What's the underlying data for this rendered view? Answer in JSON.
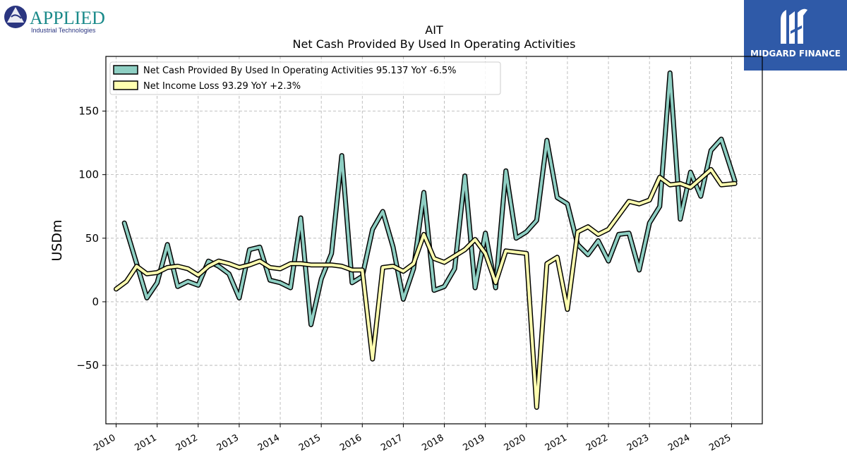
{
  "logos": {
    "left_name": "APPLIED",
    "left_tagline": "Industrial Technologies",
    "right_name": "MIDGARD FINANCE"
  },
  "colors": {
    "series1": "#8ecfc3",
    "series2": "#ffffb0",
    "outline": "#000000",
    "grid": "#b0b0b0",
    "brand_blue": "#2f5aa8",
    "applied_teal": "#1a8a8a",
    "applied_navy": "#2a3580"
  },
  "chart_data": {
    "type": "line",
    "title": "AIT",
    "subtitle": "Net Cash Provided By Used In Operating Activities",
    "xlabel": "",
    "ylabel": "USDm",
    "xlim": [
      2009.75,
      2025.75
    ],
    "ylim": [
      -96,
      193
    ],
    "grid": true,
    "legend_position": "top-left",
    "x_ticks": [
      2010,
      2011,
      2012,
      2013,
      2014,
      2015,
      2016,
      2017,
      2018,
      2019,
      2020,
      2021,
      2022,
      2023,
      2024,
      2025
    ],
    "x_tick_labels": [
      "2010",
      "2011",
      "2012",
      "2013",
      "2014",
      "2015",
      "2016",
      "2017",
      "2018",
      "2019",
      "2020",
      "2021",
      "2022",
      "2023",
      "2024",
      "2025"
    ],
    "y_ticks": [
      -50,
      0,
      50,
      100,
      150
    ],
    "y_tick_labels": [
      "−50",
      "0",
      "50",
      "100",
      "150"
    ],
    "series": [
      {
        "name": "Net Cash Provided By Used In Operating Activities  95.137 YoY -6.5%",
        "x": [
          2010.2,
          2010.5,
          2010.75,
          2011.0,
          2011.25,
          2011.5,
          2011.75,
          2012.0,
          2012.25,
          2012.5,
          2012.75,
          2013.0,
          2013.25,
          2013.5,
          2013.75,
          2014.0,
          2014.25,
          2014.5,
          2014.75,
          2015.0,
          2015.25,
          2015.5,
          2015.75,
          2016.0,
          2016.25,
          2016.5,
          2016.75,
          2017.0,
          2017.25,
          2017.5,
          2017.75,
          2018.0,
          2018.25,
          2018.5,
          2018.75,
          2019.0,
          2019.25,
          2019.5,
          2019.75,
          2020.0,
          2020.25,
          2020.5,
          2020.75,
          2021.0,
          2021.25,
          2021.5,
          2021.75,
          2022.0,
          2022.25,
          2022.5,
          2022.75,
          2023.0,
          2023.25,
          2023.5,
          2023.75,
          2024.0,
          2024.25,
          2024.5,
          2024.75,
          2025.08
        ],
        "values": [
          62,
          30,
          3,
          15,
          45,
          12,
          16,
          13,
          32,
          28,
          22,
          3,
          41,
          43,
          17,
          15,
          11,
          66,
          -18,
          18,
          38,
          115,
          15,
          20,
          57,
          71,
          43,
          2,
          26,
          86,
          9,
          12,
          26,
          99,
          11,
          54,
          11,
          103,
          50,
          55,
          64,
          127,
          82,
          77,
          45,
          37,
          48,
          32,
          53,
          54,
          25,
          62,
          75,
          180,
          65,
          102,
          83,
          119,
          128,
          95
        ]
      },
      {
        "name": "Net Income Loss  93.29 YoY +2.3%",
        "x": [
          2010.0,
          2010.25,
          2010.5,
          2010.75,
          2011.0,
          2011.25,
          2011.5,
          2011.75,
          2012.0,
          2012.25,
          2012.5,
          2012.75,
          2013.0,
          2013.25,
          2013.5,
          2013.75,
          2014.0,
          2014.25,
          2014.5,
          2014.75,
          2015.0,
          2015.25,
          2015.5,
          2015.75,
          2016.0,
          2016.25,
          2016.5,
          2016.75,
          2017.0,
          2017.25,
          2017.5,
          2017.75,
          2018.0,
          2018.25,
          2018.5,
          2018.75,
          2019.0,
          2019.25,
          2019.5,
          2019.75,
          2020.0,
          2020.25,
          2020.5,
          2020.75,
          2021.0,
          2021.25,
          2021.5,
          2021.75,
          2022.0,
          2022.25,
          2022.5,
          2022.75,
          2023.0,
          2023.25,
          2023.5,
          2023.75,
          2024.0,
          2024.25,
          2024.5,
          2024.75,
          2025.08
        ],
        "values": [
          10,
          16,
          28,
          22,
          23,
          27,
          28,
          26,
          21,
          28,
          32,
          30,
          27,
          29,
          32,
          27,
          26,
          30,
          30,
          29,
          29,
          29,
          28,
          25,
          25,
          -45,
          27,
          28,
          24,
          30,
          53,
          34,
          31,
          36,
          41,
          49,
          38,
          15,
          40,
          39,
          38,
          -83,
          30,
          35,
          -6,
          55,
          59,
          53,
          57,
          68,
          79,
          77,
          80,
          98,
          92,
          93,
          90,
          97,
          104,
          92,
          93
        ]
      }
    ]
  }
}
